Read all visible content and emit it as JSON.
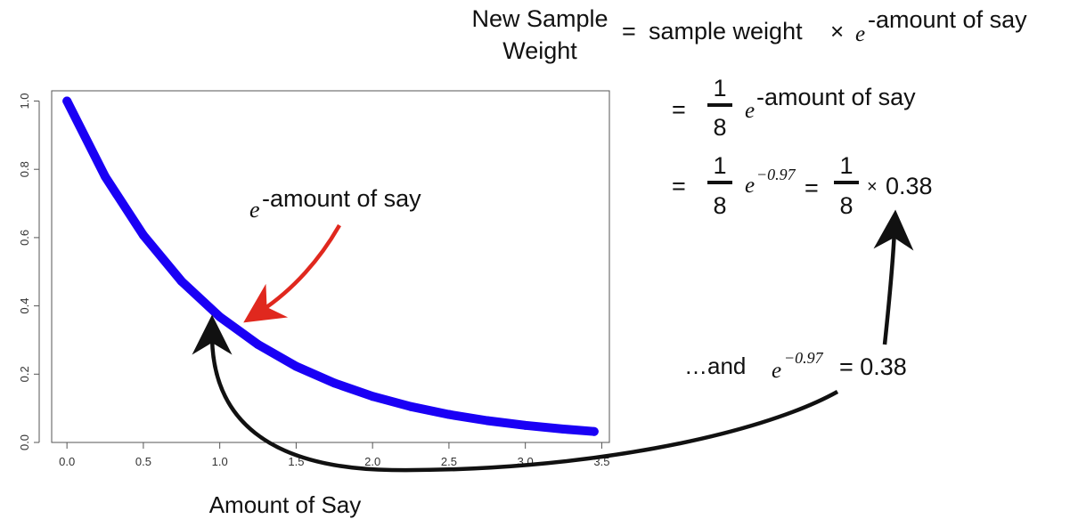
{
  "chart_data": {
    "type": "line",
    "title": "",
    "xlabel": "Amount of Say",
    "ylabel": "",
    "xlim": [
      -0.1,
      3.55
    ],
    "ylim": [
      0,
      1.03
    ],
    "x_ticks": [
      0.0,
      0.5,
      1.0,
      1.5,
      2.0,
      2.5,
      3.0,
      3.5
    ],
    "x_tick_labels": [
      "0.0",
      "0.5",
      "1.0",
      "1.5",
      "2.0",
      "2.5",
      "3.0",
      "3.5"
    ],
    "y_ticks": [
      0.0,
      0.2,
      0.4,
      0.6,
      0.8,
      1.0
    ],
    "y_tick_labels": [
      "0.0",
      "0.2",
      "0.4",
      "0.6",
      "0.8",
      "1.0"
    ],
    "series": [
      {
        "color": "#1a00f5",
        "x": [
          0.0,
          0.25,
          0.5,
          0.75,
          1.0,
          1.25,
          1.5,
          1.75,
          2.0,
          2.25,
          2.5,
          2.75,
          3.0,
          3.25,
          3.45
        ],
        "y": [
          1.0,
          0.779,
          0.607,
          0.472,
          0.368,
          0.287,
          0.223,
          0.174,
          0.135,
          0.105,
          0.082,
          0.064,
          0.05,
          0.039,
          0.032
        ]
      }
    ],
    "curve_annotation": {
      "base": "e",
      "exponent": "-amount of say",
      "arrow_color": "#e0281e"
    }
  },
  "equation": {
    "lhs_line1": "New Sample",
    "lhs_line2": "Weight",
    "eq_sign": "=",
    "rhs_text": "sample weight",
    "times": "×",
    "base": "e",
    "exponent": "-amount of say",
    "step1": {
      "numerator": "1",
      "denominator": "8",
      "base": "e",
      "exponent": "-amount of say"
    },
    "step2": {
      "numerator": "1",
      "denominator": "8",
      "base": "e",
      "exponent": "−0.97",
      "numerator2": "1",
      "denominator2": "8",
      "times": "×",
      "value": "0.38"
    }
  },
  "note": {
    "prefix": "…and",
    "base": "e",
    "exponent": "−0.97",
    "result": "= 0.38"
  }
}
